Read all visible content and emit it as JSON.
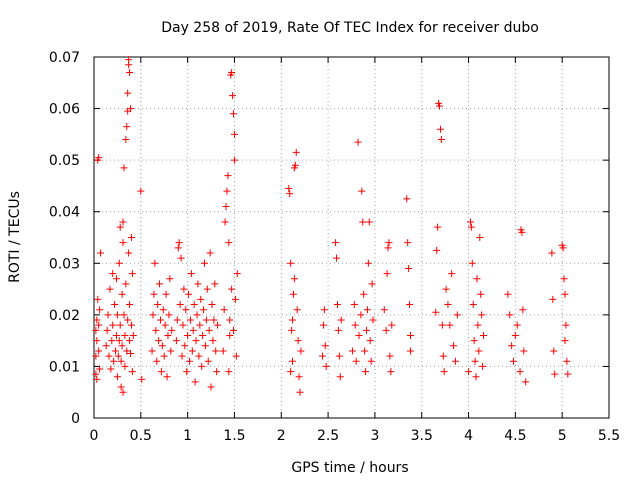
{
  "chart_data": {
    "type": "scatter",
    "title": "Day 258 of 2019, Rate Of TEC Index for receiver dubo",
    "xlabel": "GPS time / hours",
    "ylabel": "ROTI / TECUs",
    "xlim": [
      0,
      5.5
    ],
    "ylim": [
      0,
      0.07
    ],
    "xticks": [
      "0",
      "0.5",
      "1",
      "1.5",
      "2",
      "2.5",
      "3",
      "3.5",
      "4",
      "4.5",
      "5",
      "5.5"
    ],
    "yticks": [
      "0",
      "0.01",
      "0.02",
      "0.03",
      "0.04",
      "0.05",
      "0.06",
      "0.07"
    ],
    "grid": true,
    "marker": "+",
    "color": "#ff0000",
    "series": [
      {
        "name": "ROTI",
        "points": [
          [
            0.02,
            0.0085
          ],
          [
            0.02,
            0.012
          ],
          [
            0.02,
            0.017
          ],
          [
            0.03,
            0.0075
          ],
          [
            0.03,
            0.015
          ],
          [
            0.03,
            0.019
          ],
          [
            0.04,
            0.023
          ],
          [
            0.04,
            0.05
          ],
          [
            0.05,
            0.0505
          ],
          [
            0.05,
            0.013
          ],
          [
            0.05,
            0.018
          ],
          [
            0.06,
            0.0095
          ],
          [
            0.06,
            0.021
          ],
          [
            0.07,
            0.032
          ],
          [
            0.13,
            0.014
          ],
          [
            0.14,
            0.017
          ],
          [
            0.15,
            0.02
          ],
          [
            0.16,
            0.012
          ],
          [
            0.17,
            0.025
          ],
          [
            0.18,
            0.0095
          ],
          [
            0.19,
            0.015
          ],
          [
            0.2,
            0.028
          ],
          [
            0.2,
            0.018
          ],
          [
            0.21,
            0.011
          ],
          [
            0.22,
            0.022
          ],
          [
            0.23,
            0.013
          ],
          [
            0.24,
            0.016
          ],
          [
            0.24,
            0.027
          ],
          [
            0.25,
            0.008
          ],
          [
            0.25,
            0.02
          ],
          [
            0.26,
            0.012
          ],
          [
            0.27,
            0.03
          ],
          [
            0.27,
            0.015
          ],
          [
            0.28,
            0.037
          ],
          [
            0.28,
            0.018
          ],
          [
            0.29,
            0.006
          ],
          [
            0.29,
            0.011
          ],
          [
            0.3,
            0.024
          ],
          [
            0.3,
            0.014
          ],
          [
            0.31,
            0.005
          ],
          [
            0.31,
            0.034
          ],
          [
            0.31,
            0.038
          ],
          [
            0.32,
            0.0485
          ],
          [
            0.32,
            0.02
          ],
          [
            0.33,
            0.016
          ],
          [
            0.33,
            0.01
          ],
          [
            0.34,
            0.054
          ],
          [
            0.34,
            0.026
          ],
          [
            0.35,
            0.0565
          ],
          [
            0.35,
            0.013
          ],
          [
            0.36,
            0.063
          ],
          [
            0.36,
            0.0595
          ],
          [
            0.36,
            0.019
          ],
          [
            0.37,
            0.0685
          ],
          [
            0.37,
            0.0695
          ],
          [
            0.37,
            0.032
          ],
          [
            0.38,
            0.067
          ],
          [
            0.38,
            0.015
          ],
          [
            0.38,
            0.022
          ],
          [
            0.39,
            0.06
          ],
          [
            0.39,
            0.0125
          ],
          [
            0.4,
            0.035
          ],
          [
            0.4,
            0.018
          ],
          [
            0.41,
            0.009
          ],
          [
            0.41,
            0.028
          ],
          [
            0.42,
            0.016
          ],
          [
            0.5,
            0.044
          ],
          [
            0.51,
            0.0075
          ],
          [
            0.62,
            0.013
          ],
          [
            0.63,
            0.02
          ],
          [
            0.64,
            0.024
          ],
          [
            0.65,
            0.03
          ],
          [
            0.66,
            0.017
          ],
          [
            0.67,
            0.011
          ],
          [
            0.68,
            0.022
          ],
          [
            0.69,
            0.015
          ],
          [
            0.7,
            0.026
          ],
          [
            0.71,
            0.019
          ],
          [
            0.72,
            0.009
          ],
          [
            0.73,
            0.014
          ],
          [
            0.74,
            0.021
          ],
          [
            0.75,
            0.012
          ],
          [
            0.76,
            0.018
          ],
          [
            0.77,
            0.024
          ],
          [
            0.78,
            0.008
          ],
          [
            0.79,
            0.016
          ],
          [
            0.8,
            0.02
          ],
          [
            0.81,
            0.027
          ],
          [
            0.82,
            0.013
          ],
          [
            0.83,
            0.017
          ],
          [
            0.88,
            0.015
          ],
          [
            0.89,
            0.019
          ],
          [
            0.9,
            0.033
          ],
          [
            0.91,
            0.034
          ],
          [
            0.92,
            0.022
          ],
          [
            0.93,
            0.031
          ],
          [
            0.94,
            0.012
          ],
          [
            0.95,
            0.018
          ],
          [
            0.96,
            0.025
          ],
          [
            0.97,
            0.014
          ],
          [
            0.98,
            0.021
          ],
          [
            0.99,
            0.009
          ],
          [
            1.0,
            0.016
          ],
          [
            1.01,
            0.024
          ],
          [
            1.02,
            0.011
          ],
          [
            1.03,
            0.019
          ],
          [
            1.04,
            0.028
          ],
          [
            1.05,
            0.013
          ],
          [
            1.06,
            0.017
          ],
          [
            1.07,
            0.022
          ],
          [
            1.08,
            0.007
          ],
          [
            1.09,
            0.015
          ],
          [
            1.1,
            0.02
          ],
          [
            1.11,
            0.026
          ],
          [
            1.12,
            0.012
          ],
          [
            1.13,
            0.018
          ],
          [
            1.14,
            0.023
          ],
          [
            1.15,
            0.01
          ],
          [
            1.16,
            0.016
          ],
          [
            1.17,
            0.021
          ],
          [
            1.18,
            0.03
          ],
          [
            1.19,
            0.014
          ],
          [
            1.2,
            0.019
          ],
          [
            1.21,
            0.025
          ],
          [
            1.22,
            0.011
          ],
          [
            1.23,
            0.017
          ],
          [
            1.24,
            0.032
          ],
          [
            1.25,
            0.006
          ],
          [
            1.26,
            0.022
          ],
          [
            1.27,
            0.015
          ],
          [
            1.28,
            0.019
          ],
          [
            1.29,
            0.026
          ],
          [
            1.3,
            0.013
          ],
          [
            1.31,
            0.009
          ],
          [
            1.32,
            0.018
          ],
          [
            1.38,
            0.013
          ],
          [
            1.39,
            0.021
          ],
          [
            1.4,
            0.038
          ],
          [
            1.41,
            0.041
          ],
          [
            1.42,
            0.044
          ],
          [
            1.43,
            0.047
          ],
          [
            1.44,
            0.034
          ],
          [
            1.45,
            0.016
          ],
          [
            1.46,
            0.0665
          ],
          [
            1.47,
            0.067
          ],
          [
            1.48,
            0.0625
          ],
          [
            1.49,
            0.059
          ],
          [
            1.5,
            0.05
          ],
          [
            1.5,
            0.055
          ],
          [
            1.51,
            0.023
          ],
          [
            1.52,
            0.012
          ],
          [
            1.53,
            0.028
          ],
          [
            1.44,
            0.009
          ],
          [
            1.45,
            0.019
          ],
          [
            1.47,
            0.025
          ],
          [
            1.49,
            0.017
          ],
          [
            2.08,
            0.0445
          ],
          [
            2.09,
            0.0435
          ],
          [
            2.1,
            0.03
          ],
          [
            2.11,
            0.017
          ],
          [
            2.12,
            0.011
          ],
          [
            2.13,
            0.024
          ],
          [
            2.14,
            0.0485
          ],
          [
            2.15,
            0.049
          ],
          [
            2.16,
            0.0515
          ],
          [
            2.17,
            0.021
          ],
          [
            2.18,
            0.015
          ],
          [
            2.19,
            0.008
          ],
          [
            2.2,
            0.005
          ],
          [
            2.21,
            0.013
          ],
          [
            2.1,
            0.009
          ],
          [
            2.12,
            0.019
          ],
          [
            2.14,
            0.027
          ],
          [
            2.44,
            0.012
          ],
          [
            2.45,
            0.018
          ],
          [
            2.46,
            0.021
          ],
          [
            2.47,
            0.014
          ],
          [
            2.48,
            0.01
          ],
          [
            2.58,
            0.034
          ],
          [
            2.59,
            0.031
          ],
          [
            2.6,
            0.022
          ],
          [
            2.61,
            0.017
          ],
          [
            2.62,
            0.012
          ],
          [
            2.63,
            0.008
          ],
          [
            2.64,
            0.019
          ],
          [
            2.76,
            0.013
          ],
          [
            2.78,
            0.022
          ],
          [
            2.79,
            0.018
          ],
          [
            2.8,
            0.011
          ],
          [
            2.82,
            0.0535
          ],
          [
            2.83,
            0.016
          ],
          [
            2.85,
            0.02
          ],
          [
            2.86,
            0.044
          ],
          [
            2.87,
            0.038
          ],
          [
            2.88,
            0.024
          ],
          [
            2.89,
            0.013
          ],
          [
            2.9,
            0.009
          ],
          [
            2.91,
            0.017
          ],
          [
            2.92,
            0.021
          ],
          [
            2.93,
            0.03
          ],
          [
            2.94,
            0.038
          ],
          [
            2.95,
            0.015
          ],
          [
            2.96,
            0.011
          ],
          [
            2.97,
            0.026
          ],
          [
            2.98,
            0.019
          ],
          [
            3.1,
            0.021
          ],
          [
            3.12,
            0.017
          ],
          [
            3.13,
            0.028
          ],
          [
            3.14,
            0.033
          ],
          [
            3.15,
            0.034
          ],
          [
            3.16,
            0.012
          ],
          [
            3.17,
            0.009
          ],
          [
            3.18,
            0.018
          ],
          [
            3.34,
            0.0425
          ],
          [
            3.35,
            0.034
          ],
          [
            3.36,
            0.029
          ],
          [
            3.37,
            0.022
          ],
          [
            3.38,
            0.013
          ],
          [
            3.38,
            0.016
          ],
          [
            3.65,
            0.0205
          ],
          [
            3.66,
            0.0325
          ],
          [
            3.67,
            0.037
          ],
          [
            3.68,
            0.061
          ],
          [
            3.69,
            0.0605
          ],
          [
            3.7,
            0.056
          ],
          [
            3.71,
            0.054
          ],
          [
            3.72,
            0.018
          ],
          [
            3.73,
            0.012
          ],
          [
            3.74,
            0.009
          ],
          [
            3.76,
            0.025
          ],
          [
            3.78,
            0.022
          ],
          [
            3.8,
            0.018
          ],
          [
            3.82,
            0.028
          ],
          [
            3.84,
            0.014
          ],
          [
            3.86,
            0.011
          ],
          [
            3.88,
            0.02
          ],
          [
            4.0,
            0.009
          ],
          [
            4.02,
            0.038
          ],
          [
            4.03,
            0.037
          ],
          [
            4.04,
            0.03
          ],
          [
            4.05,
            0.022
          ],
          [
            4.06,
            0.015
          ],
          [
            4.07,
            0.011
          ],
          [
            4.08,
            0.008
          ],
          [
            4.09,
            0.027
          ],
          [
            4.1,
            0.018
          ],
          [
            4.11,
            0.013
          ],
          [
            4.12,
            0.035
          ],
          [
            4.13,
            0.024
          ],
          [
            4.14,
            0.02
          ],
          [
            4.15,
            0.01
          ],
          [
            4.16,
            0.016
          ],
          [
            4.42,
            0.024
          ],
          [
            4.44,
            0.02
          ],
          [
            4.46,
            0.014
          ],
          [
            4.48,
            0.011
          ],
          [
            4.5,
            0.016
          ],
          [
            4.52,
            0.018
          ],
          [
            4.55,
            0.009
          ],
          [
            4.56,
            0.0365
          ],
          [
            4.57,
            0.036
          ],
          [
            4.58,
            0.021
          ],
          [
            4.59,
            0.013
          ],
          [
            4.61,
            0.007
          ],
          [
            4.89,
            0.032
          ],
          [
            4.9,
            0.023
          ],
          [
            4.91,
            0.013
          ],
          [
            4.92,
            0.0085
          ],
          [
            5.0,
            0.0335
          ],
          [
            5.01,
            0.033
          ],
          [
            5.02,
            0.027
          ],
          [
            5.03,
            0.024
          ],
          [
            5.04,
            0.018
          ],
          [
            5.05,
            0.011
          ],
          [
            5.06,
            0.0085
          ],
          [
            5.03,
            0.015
          ]
        ]
      }
    ]
  }
}
